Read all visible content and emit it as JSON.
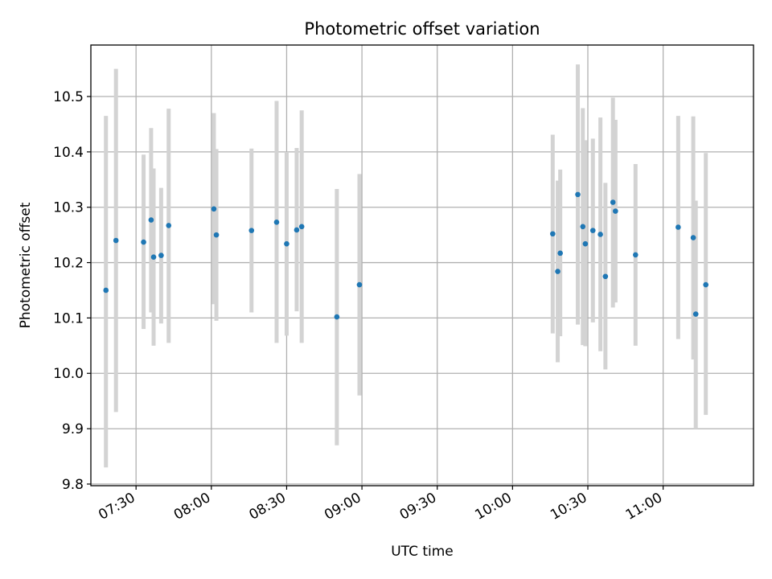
{
  "chart_data": {
    "type": "scatter",
    "title": "Photometric offset variation",
    "xlabel": "UTC time",
    "ylabel": "Photometric offset",
    "x_ticks": [
      "07:30",
      "08:00",
      "08:30",
      "09:00",
      "09:30",
      "10:00",
      "10:30",
      "11:00"
    ],
    "y_ticks": [
      "9.8",
      "9.9",
      "10.0",
      "10.1",
      "10.2",
      "10.3",
      "10.4",
      "10.5"
    ],
    "x_range": [
      "07:12",
      "11:36"
    ],
    "ylim": [
      9.797,
      10.593
    ],
    "grid": true,
    "colors": {
      "point": "#1f77b4",
      "error_bar": "#d3d3d3",
      "grid": "#b0b0b0"
    },
    "points": [
      {
        "x": "07:18",
        "y": 10.15,
        "err_low": 9.83,
        "err_high": 10.465
      },
      {
        "x": "07:22",
        "y": 10.24,
        "err_low": 9.93,
        "err_high": 10.55
      },
      {
        "x": "07:33",
        "y": 10.237,
        "err_low": 10.08,
        "err_high": 10.395
      },
      {
        "x": "07:36",
        "y": 10.277,
        "err_low": 10.11,
        "err_high": 10.443
      },
      {
        "x": "07:37",
        "y": 10.21,
        "err_low": 10.05,
        "err_high": 10.37
      },
      {
        "x": "07:40",
        "y": 10.213,
        "err_low": 10.09,
        "err_high": 10.335
      },
      {
        "x": "07:43",
        "y": 10.267,
        "err_low": 10.055,
        "err_high": 10.478
      },
      {
        "x": "08:01",
        "y": 10.297,
        "err_low": 10.125,
        "err_high": 10.47
      },
      {
        "x": "08:02",
        "y": 10.25,
        "err_low": 10.095,
        "err_high": 10.405
      },
      {
        "x": "08:16",
        "y": 10.258,
        "err_low": 10.11,
        "err_high": 10.406
      },
      {
        "x": "08:26",
        "y": 10.273,
        "err_low": 10.055,
        "err_high": 10.492
      },
      {
        "x": "08:30",
        "y": 10.234,
        "err_low": 10.068,
        "err_high": 10.4
      },
      {
        "x": "08:34",
        "y": 10.259,
        "err_low": 10.112,
        "err_high": 10.407
      },
      {
        "x": "08:36",
        "y": 10.265,
        "err_low": 10.055,
        "err_high": 10.475
      },
      {
        "x": "08:50",
        "y": 10.102,
        "err_low": 9.87,
        "err_high": 10.333
      },
      {
        "x": "08:59",
        "y": 10.16,
        "err_low": 9.96,
        "err_high": 10.36
      },
      {
        "x": "10:16",
        "y": 10.252,
        "err_low": 10.072,
        "err_high": 10.431
      },
      {
        "x": "10:18",
        "y": 10.184,
        "err_low": 10.02,
        "err_high": 10.348
      },
      {
        "x": "10:19",
        "y": 10.217,
        "err_low": 10.067,
        "err_high": 10.368
      },
      {
        "x": "10:26",
        "y": 10.323,
        "err_low": 10.088,
        "err_high": 10.558
      },
      {
        "x": "10:28",
        "y": 10.265,
        "err_low": 10.051,
        "err_high": 10.479
      },
      {
        "x": "10:29",
        "y": 10.234,
        "err_low": 10.049,
        "err_high": 10.421
      },
      {
        "x": "10:32",
        "y": 10.258,
        "err_low": 10.092,
        "err_high": 10.424
      },
      {
        "x": "10:35",
        "y": 10.251,
        "err_low": 10.04,
        "err_high": 10.462
      },
      {
        "x": "10:37",
        "y": 10.175,
        "err_low": 10.007,
        "err_high": 10.344
      },
      {
        "x": "10:40",
        "y": 10.309,
        "err_low": 10.119,
        "err_high": 10.498
      },
      {
        "x": "10:41",
        "y": 10.293,
        "err_low": 10.128,
        "err_high": 10.458
      },
      {
        "x": "10:49",
        "y": 10.214,
        "err_low": 10.05,
        "err_high": 10.378
      },
      {
        "x": "11:06",
        "y": 10.264,
        "err_low": 10.062,
        "err_high": 10.465
      },
      {
        "x": "11:12",
        "y": 10.245,
        "err_low": 10.025,
        "err_high": 10.464
      },
      {
        "x": "11:13",
        "y": 10.107,
        "err_low": 9.9,
        "err_high": 10.312
      },
      {
        "x": "11:17",
        "y": 10.16,
        "err_low": 9.925,
        "err_high": 10.398
      }
    ]
  }
}
